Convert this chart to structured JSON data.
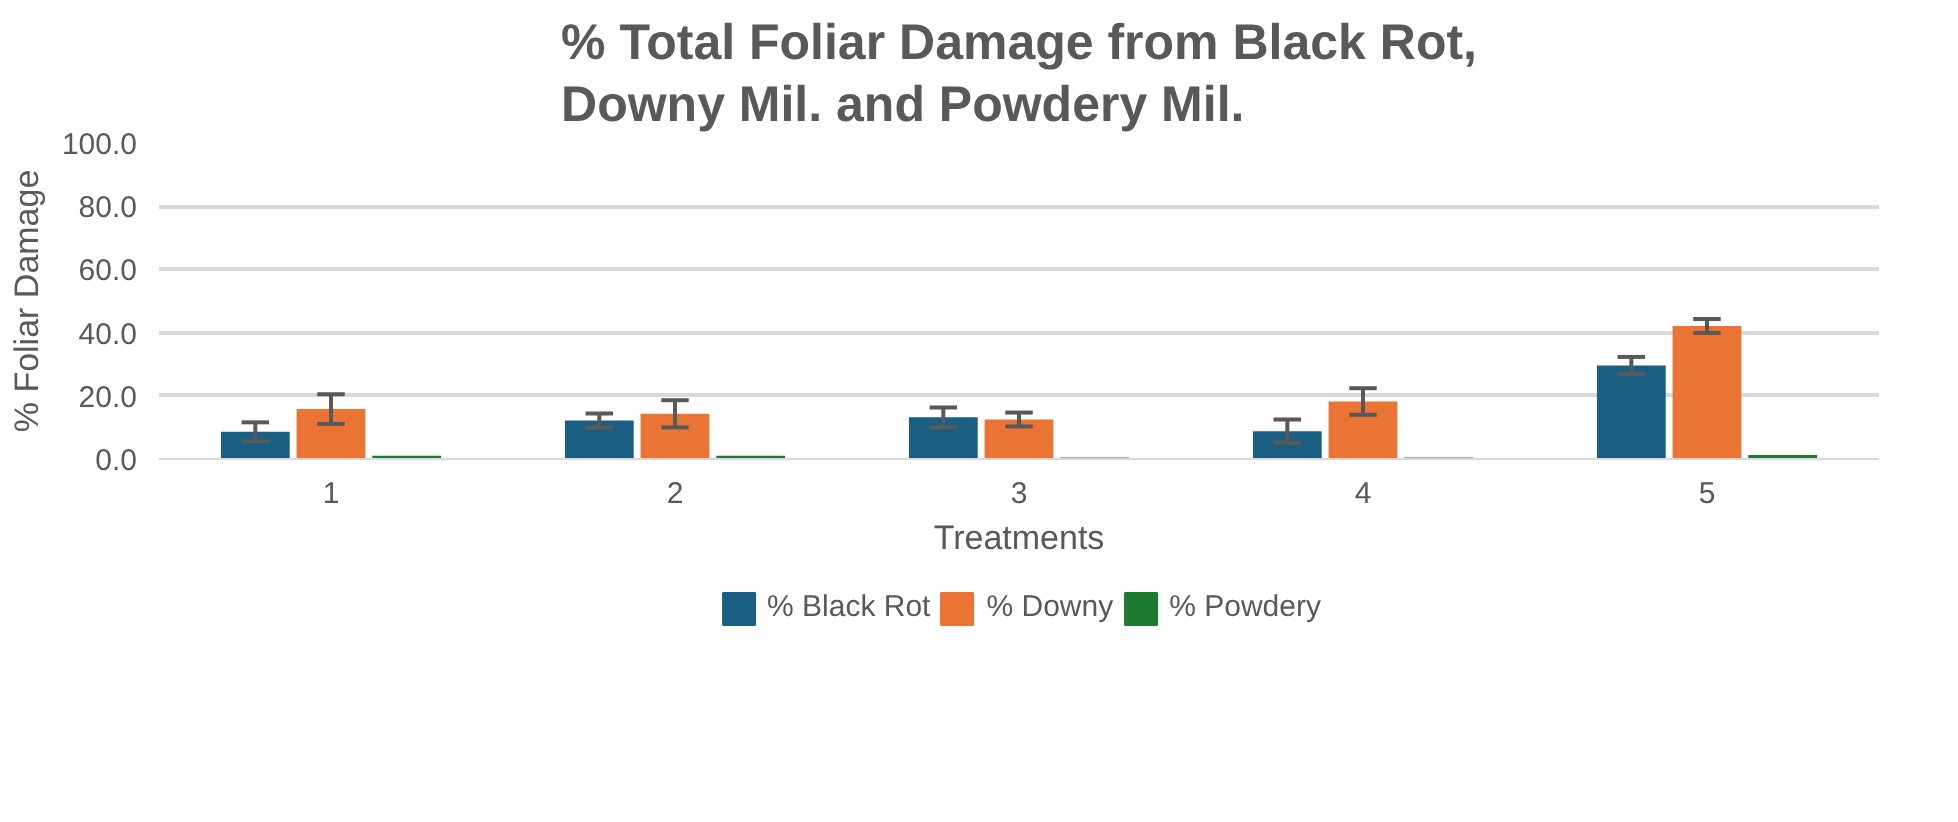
{
  "chart_data": {
    "type": "bar",
    "title": "% Total Foliar Damage from Black Rot, Downy Mil. and Powdery Mil.",
    "xlabel": "Treatments",
    "ylabel": "% Foliar Damage",
    "categories": [
      "1",
      "2",
      "3",
      "4",
      "5"
    ],
    "series": [
      {
        "name": "% Black Rot",
        "color": "#1a5f82",
        "values": [
          8.6,
          12.2,
          13.2,
          8.8,
          29.6
        ],
        "errors": [
          3.0,
          2.2,
          3.1,
          3.7,
          2.7
        ]
      },
      {
        "name": "% Downy",
        "color": "#eb7434",
        "values": [
          15.8,
          14.3,
          12.5,
          18.2,
          42.1
        ],
        "errors": [
          4.7,
          4.3,
          2.2,
          4.2,
          2.2
        ]
      },
      {
        "name": "% Powdery",
        "color": "#1e7a2e",
        "values": [
          1.0,
          1.0,
          0.5,
          0.5,
          1.3
        ]
      }
    ],
    "ylim": [
      0,
      100
    ],
    "yticks": [
      {
        "value": 0,
        "label": "0.0"
      },
      {
        "value": 20,
        "label": "20.0"
      },
      {
        "value": 40,
        "label": "40.0"
      },
      {
        "value": 60,
        "label": "60.0"
      },
      {
        "value": 80,
        "label": "80.0"
      },
      {
        "value": 100,
        "label": "100.0"
      }
    ],
    "grid": "y",
    "legend": "bottom"
  }
}
